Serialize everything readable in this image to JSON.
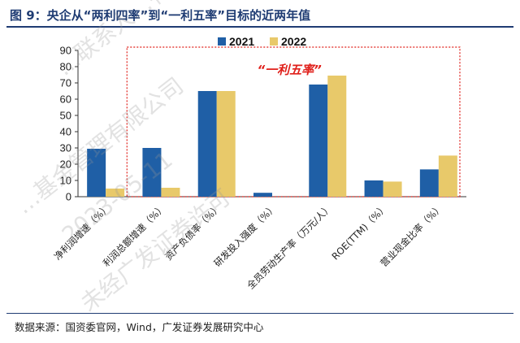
{
  "figure": {
    "title": "图 9：央企从“两利四率”到“一利五率”目标的近两年值",
    "source": "数据来源：国资委官网，Wind，广发证券发展研究中心"
  },
  "watermark": {
    "lines": [
      "…联系人…有限公司",
      "…基金管理有限公司",
      "2023-05-11",
      "未经广发证券许可"
    ]
  },
  "chart_data": {
    "type": "bar",
    "categories": [
      "净利润增速（%）",
      "利润总额增速（%）",
      "资产负债率（%）",
      "研发投入强度（%）",
      "全员劳动生产率（万元/人）",
      "ROE(TTM)（%）",
      "营业现金比率（%）"
    ],
    "series": [
      {
        "name": "2021",
        "color": "#1f5fa6",
        "values": [
          29.5,
          30.0,
          65.0,
          2.4,
          69.0,
          10.0,
          16.8
        ]
      },
      {
        "name": "2022",
        "color": "#e8c96a",
        "values": [
          5.0,
          5.5,
          65.0,
          0.0,
          74.5,
          9.3,
          25.3
        ]
      }
    ],
    "ylim": [
      0,
      90
    ],
    "yticks": [
      0,
      10,
      20,
      30,
      40,
      50,
      60,
      70,
      80,
      90
    ],
    "grid": false,
    "legend": "top-center",
    "annotation": {
      "text": "“一利五率”",
      "color": "#e0201b",
      "covers_categories": [
        1,
        6
      ],
      "style": "dotted-box"
    }
  }
}
